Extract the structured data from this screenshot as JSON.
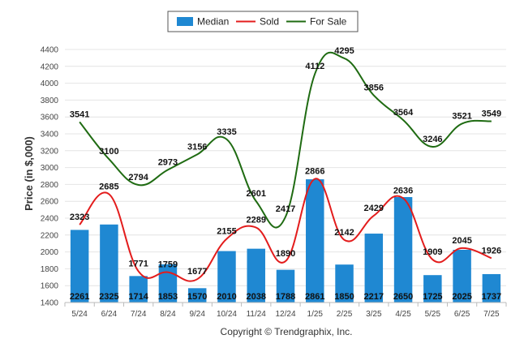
{
  "chart_data": {
    "type": "bar",
    "ylabel": "Price (in $,000)",
    "xlabel": "",
    "ylim": [
      1400,
      4400
    ],
    "yticks": [
      1400,
      1600,
      1800,
      2000,
      2200,
      2400,
      2600,
      2800,
      3000,
      3200,
      3400,
      3600,
      3800,
      4000,
      4200,
      4400
    ],
    "grid": true,
    "legend_position": "top-center",
    "categories": [
      "5/24",
      "6/24",
      "7/24",
      "8/24",
      "9/24",
      "10/24",
      "11/24",
      "12/24",
      "1/25",
      "2/25",
      "3/25",
      "4/25",
      "5/25",
      "6/25",
      "7/25"
    ],
    "series": [
      {
        "name": "Median",
        "kind": "bar",
        "color": "#1f88d2",
        "values": [
          2261,
          2325,
          1714,
          1853,
          1570,
          2010,
          2038,
          1788,
          2861,
          1850,
          2217,
          2650,
          1725,
          2025,
          1737
        ]
      },
      {
        "name": "Sold",
        "kind": "line",
        "color": "#e31c1c",
        "values": [
          2323,
          2685,
          1771,
          1759,
          1677,
          2155,
          2289,
          1890,
          2866,
          2142,
          2429,
          2636,
          1909,
          2045,
          1926
        ]
      },
      {
        "name": "For Sale",
        "kind": "line",
        "color": "#1f6b12",
        "values": [
          3541,
          3100,
          2794,
          2973,
          3156,
          3335,
          2601,
          2417,
          4112,
          4295,
          3856,
          3564,
          3246,
          3521,
          3549
        ]
      }
    ]
  },
  "footer": {
    "copyright": "Copyright © Trendgraphix, Inc."
  }
}
